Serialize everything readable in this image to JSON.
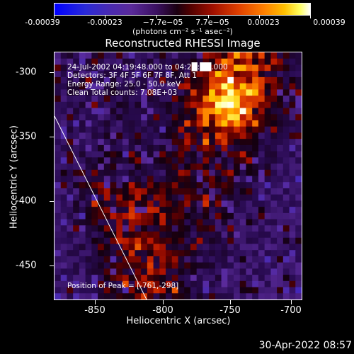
{
  "colorbar": {
    "ticks": [
      "-0.00039",
      "-0.00023",
      "−7.7e−05",
      "7.7e−05",
      "0.00023",
      "0.00039"
    ],
    "units": "(photons cm⁻² s⁻¹ asec⁻²)"
  },
  "title": "Reconstructed RHESSI Image",
  "annotations": {
    "time": "24-Jul-2002 04:19:48.000 to 04:2█:██.000",
    "detectors": "Detectors: 3F 4F 5F 6F 7F 8F, Att 1",
    "energy": "Energy Range: 25.0 - 50.0 keV",
    "clean": "Clean    Total counts: 7.08E+03",
    "peak": "Position of Peak = [-761,-298]"
  },
  "chart_data": {
    "type": "heatmap",
    "title": "Reconstructed RHESSI Image",
    "xlabel": "Heliocentric X (arcsec)",
    "ylabel": "Heliocentric Y (arcsec)",
    "xticks": [
      "-850",
      "-800",
      "-750",
      "-700"
    ],
    "yticks": [
      "-300",
      "-350",
      "-400",
      "-450"
    ],
    "xlim": [
      -877,
      -690
    ],
    "ylim": [
      -477,
      -290
    ],
    "peak": [
      -761,
      -298
    ],
    "colorbar_range": [
      -0.00039,
      0.00039
    ]
  },
  "footer": "30-Apr-2022 08:57"
}
